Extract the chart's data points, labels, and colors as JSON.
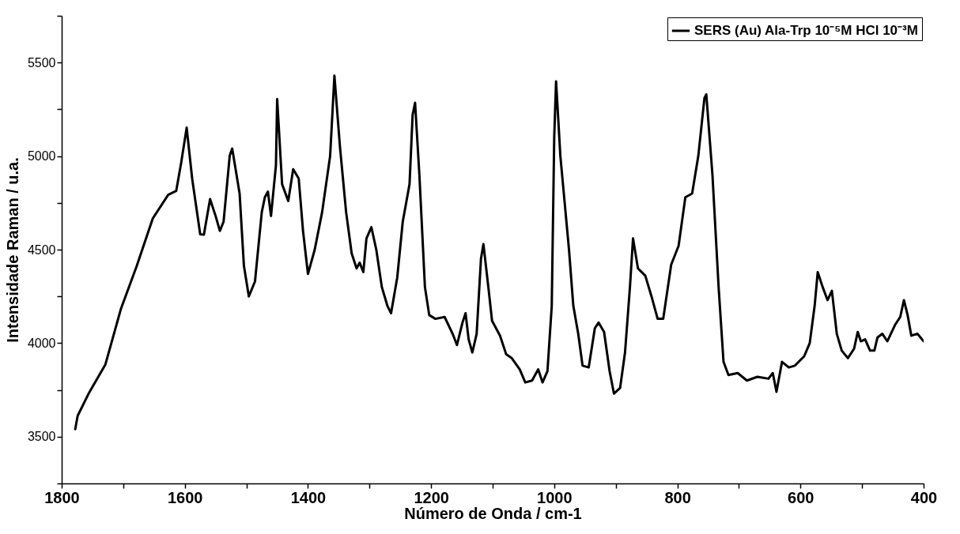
{
  "chart_data": {
    "type": "line",
    "xlabel": "Número de Onda / cm-1",
    "ylabel": "Intensidade Raman / u.a.",
    "xlim": [
      1800,
      400
    ],
    "ylim": [
      3250,
      5750
    ],
    "xticks": [
      1800,
      {
        "value": 1700,
        "label": null
      },
      1600,
      {
        "value": 1500,
        "label": null
      },
      1400,
      {
        "value": 1300,
        "label": null
      },
      1200,
      {
        "value": 1100,
        "label": null
      },
      1000,
      {
        "value": 900,
        "label": null
      },
      800,
      {
        "value": 700,
        "label": null
      },
      600,
      {
        "value": 500,
        "label": null
      },
      400
    ],
    "yticks": [
      {
        "value": 3250,
        "label": null
      },
      3500,
      {
        "value": 3750,
        "label": null
      },
      4000,
      {
        "value": 4250,
        "label": null
      },
      4500,
      {
        "value": 4750,
        "label": null
      },
      5000,
      {
        "value": 5250,
        "label": null
      },
      5500,
      {
        "value": 5750,
        "label": null
      }
    ],
    "grid": false,
    "legend": "top right",
    "marker": "none",
    "line_style": "solid",
    "series": [
      {
        "name": "SERS (Au) Ala-Trp 10⁻⁵M HCl 10⁻³M",
        "color": "#000000",
        "x": [
          1778,
          1774,
          1755,
          1729,
          1704,
          1678,
          1652,
          1627,
          1614,
          1606,
          1597,
          1588,
          1575,
          1569,
          1559,
          1550,
          1543,
          1537,
          1527,
          1523,
          1511,
          1504,
          1496,
          1486,
          1475,
          1470,
          1465,
          1460,
          1452,
          1450,
          1442,
          1432,
          1424,
          1415,
          1408,
          1400,
          1389,
          1377,
          1364,
          1357,
          1348,
          1338,
          1329,
          1321,
          1316,
          1310,
          1305,
          1297,
          1289,
          1280,
          1271,
          1265,
          1255,
          1246,
          1235,
          1230,
          1226,
          1219,
          1210,
          1203,
          1193,
          1178,
          1165,
          1158,
          1149,
          1144,
          1139,
          1133,
          1126,
          1119,
          1115,
          1107,
          1101,
          1088,
          1078,
          1069,
          1056,
          1047,
          1036,
          1026,
          1019,
          1011,
          1004,
          1000,
          997,
          990,
          976,
          969,
          961,
          954,
          944,
          934,
          928,
          919,
          910,
          903,
          893,
          885,
          877,
          872,
          864,
          852,
          842,
          832,
          823,
          810,
          798,
          787,
          776,
          766,
          756,
          753,
          743,
          733,
          725,
          717,
          702,
          687,
          670,
          652,
          645,
          639,
          630,
          619,
          609,
          594,
          585,
          577,
          572,
          564,
          556,
          549,
          541,
          533,
          523,
          513,
          507,
          502,
          495,
          487,
          480,
          475,
          467,
          459,
          446,
          438,
          432,
          426,
          420,
          410,
          400
        ],
        "values": [
          3540,
          3612,
          3738,
          3886,
          4181,
          4413,
          4667,
          4793,
          4814,
          4962,
          5152,
          4878,
          4582,
          4580,
          4770,
          4680,
          4600,
          4650,
          5004,
          5040,
          4800,
          4413,
          4250,
          4330,
          4700,
          4780,
          4810,
          4680,
          4950,
          5305,
          4850,
          4760,
          4930,
          4880,
          4600,
          4370,
          4500,
          4700,
          5000,
          5430,
          5050,
          4700,
          4480,
          4400,
          4430,
          4380,
          4560,
          4620,
          4500,
          4300,
          4200,
          4160,
          4350,
          4650,
          4850,
          5220,
          5285,
          4900,
          4300,
          4150,
          4130,
          4140,
          4050,
          3990,
          4110,
          4160,
          4020,
          3950,
          4050,
          4450,
          4530,
          4300,
          4120,
          4040,
          3940,
          3920,
          3860,
          3790,
          3800,
          3860,
          3790,
          3850,
          4200,
          5100,
          5400,
          5000,
          4500,
          4200,
          4050,
          3880,
          3870,
          4080,
          4110,
          4060,
          3850,
          3730,
          3760,
          3950,
          4300,
          4560,
          4400,
          4360,
          4250,
          4130,
          4130,
          4420,
          4520,
          4780,
          4800,
          5000,
          5310,
          5330,
          4900,
          4300,
          3900,
          3830,
          3840,
          3800,
          3820,
          3810,
          3840,
          3740,
          3900,
          3870,
          3880,
          3930,
          4000,
          4200,
          4380,
          4300,
          4230,
          4280,
          4050,
          3960,
          3920,
          3970,
          4060,
          4010,
          4020,
          3960,
          3960,
          4030,
          4050,
          4010,
          4100,
          4140,
          4230,
          4150,
          4040,
          4050,
          4010
        ]
      }
    ]
  }
}
